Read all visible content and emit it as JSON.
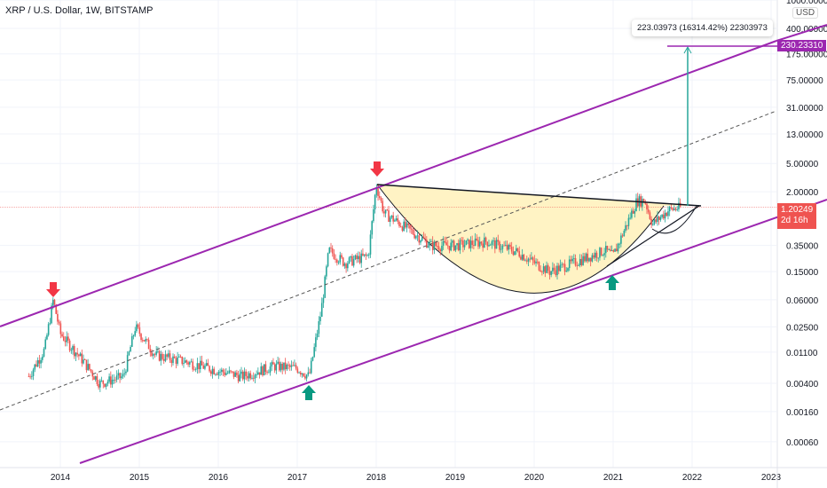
{
  "header": {
    "title": "XRP / U.S. Dollar, 1W, BITSTAMP",
    "currency": "USD"
  },
  "measure_label": "223.03973 (16314.42%) 22303973",
  "target_price": "230.23310",
  "last_price": {
    "value": "1.20249",
    "countdown": "2d 16h"
  },
  "colors": {
    "up": "#26a69a",
    "down": "#ef5350",
    "channel": "#9c27b0",
    "cup_fill": "#fff3c4",
    "target": "#9c27b0",
    "measure": "#26a69a"
  },
  "chart_data": {
    "type": "candlestick",
    "title": "XRP / U.S. Dollar, 1W, BITSTAMP",
    "yscale": "log",
    "y_ticks": [
      "1000.00000",
      "400.00000",
      "175.00000",
      "75.00000",
      "31.00000",
      "13.00000",
      "5.00000",
      "2.00000",
      "0.35000",
      "0.15000",
      "0.06000",
      "0.02500",
      "0.01100",
      "0.00400",
      "0.00160",
      "0.00060"
    ],
    "x_ticks": [
      "2014",
      "2015",
      "2016",
      "2017",
      "2018",
      "2019",
      "2020",
      "2021",
      "2022",
      "2023"
    ],
    "price_path": [
      [
        2013.6,
        0.005
      ],
      [
        2013.8,
        0.012
      ],
      [
        2013.91,
        0.06
      ],
      [
        2014.0,
        0.02
      ],
      [
        2014.3,
        0.008
      ],
      [
        2014.5,
        0.004
      ],
      [
        2014.8,
        0.005
      ],
      [
        2014.95,
        0.025
      ],
      [
        2015.2,
        0.01
      ],
      [
        2015.6,
        0.008
      ],
      [
        2016.0,
        0.006
      ],
      [
        2016.3,
        0.005
      ],
      [
        2016.7,
        0.007
      ],
      [
        2017.0,
        0.0065
      ],
      [
        2017.15,
        0.005
      ],
      [
        2017.3,
        0.04
      ],
      [
        2017.4,
        0.3
      ],
      [
        2017.6,
        0.2
      ],
      [
        2017.9,
        0.25
      ],
      [
        2018.0,
        2.5
      ],
      [
        2018.1,
        1.0
      ],
      [
        2018.4,
        0.6
      ],
      [
        2018.7,
        0.35
      ],
      [
        2019.0,
        0.35
      ],
      [
        2019.4,
        0.4
      ],
      [
        2019.8,
        0.28
      ],
      [
        2020.0,
        0.2
      ],
      [
        2020.2,
        0.15
      ],
      [
        2020.5,
        0.2
      ],
      [
        2020.9,
        0.3
      ],
      [
        2021.0,
        0.25
      ],
      [
        2021.1,
        0.45
      ],
      [
        2021.3,
        1.5
      ],
      [
        2021.4,
        1.5
      ],
      [
        2021.5,
        0.7
      ],
      [
        2021.7,
        1.1
      ],
      [
        2021.85,
        1.2
      ]
    ],
    "last_price": 1.20249,
    "target": 230.2331,
    "annotations": [
      "red-arrow-2013-top",
      "red-arrow-2018-top",
      "green-arrow-2017-bottom",
      "green-arrow-2021-bottom",
      "cup-and-handle",
      "ascending-channel"
    ]
  }
}
